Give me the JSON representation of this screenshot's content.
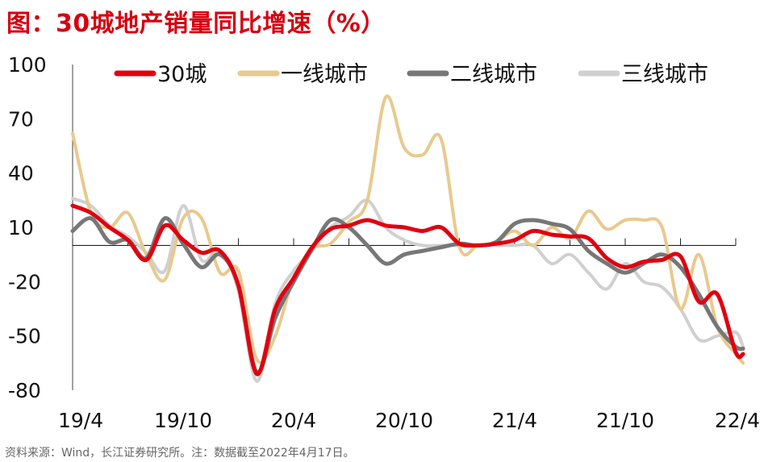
{
  "title": "图：30城地产销量同比增速（%）",
  "source": "资料来源：Wind，长江证券研究所。注：数据截至2022年4月17日。",
  "chart_data": {
    "type": "line",
    "title": "图：30城地产销量同比增速（%）",
    "xlabel": "",
    "ylabel": "",
    "ylim": [
      -80,
      100
    ],
    "yticks": [
      100,
      70,
      40,
      10,
      -20,
      -50,
      -80
    ],
    "xlim": [
      0,
      36
    ],
    "xticks": [
      {
        "x": 0,
        "label": "19/4"
      },
      {
        "x": 6,
        "label": "19/10"
      },
      {
        "x": 12,
        "label": "20/4"
      },
      {
        "x": 18,
        "label": "20/10"
      },
      {
        "x": 24,
        "label": "21/4"
      },
      {
        "x": 30,
        "label": "21/10"
      },
      {
        "x": 36,
        "label": "22/4"
      }
    ],
    "grid": false,
    "legend": "top",
    "series": [
      {
        "name": "30城",
        "color": "#e00010",
        "width": 5,
        "points": [
          [
            0,
            22
          ],
          [
            1,
            18
          ],
          [
            2,
            10
          ],
          [
            3,
            3
          ],
          [
            4,
            -8
          ],
          [
            5,
            11
          ],
          [
            6,
            3
          ],
          [
            7,
            -4
          ],
          [
            8,
            -3
          ],
          [
            9,
            -22
          ],
          [
            10,
            -71
          ],
          [
            11,
            -35
          ],
          [
            12,
            -18
          ],
          [
            13,
            -1
          ],
          [
            14,
            9
          ],
          [
            15,
            11
          ],
          [
            16,
            14
          ],
          [
            17,
            11
          ],
          [
            18,
            10
          ],
          [
            19,
            8
          ],
          [
            20,
            10
          ],
          [
            21,
            1
          ],
          [
            22,
            0
          ],
          [
            23,
            1
          ],
          [
            24,
            3
          ],
          [
            25,
            8
          ],
          [
            26,
            6
          ],
          [
            27,
            5
          ],
          [
            28,
            4
          ],
          [
            29,
            -7
          ],
          [
            30,
            -12
          ],
          [
            31,
            -9
          ],
          [
            32,
            -8
          ],
          [
            33,
            -6
          ],
          [
            34,
            -31
          ],
          [
            35,
            -27
          ],
          [
            36,
            -59
          ],
          [
            36.4,
            -60
          ]
        ]
      },
      {
        "name": "一线城市",
        "color": "#e8c98e",
        "width": 4,
        "points": [
          [
            0,
            62
          ],
          [
            1,
            18
          ],
          [
            2,
            10
          ],
          [
            3,
            18
          ],
          [
            4,
            -5
          ],
          [
            5,
            -19
          ],
          [
            6,
            15
          ],
          [
            7,
            15
          ],
          [
            8,
            -15
          ],
          [
            9,
            -14
          ],
          [
            10,
            -63
          ],
          [
            11,
            -50
          ],
          [
            12,
            -18
          ],
          [
            13,
            -2
          ],
          [
            14,
            1
          ],
          [
            15,
            13
          ],
          [
            16,
            25
          ],
          [
            17,
            82
          ],
          [
            18,
            54
          ],
          [
            19,
            50
          ],
          [
            20,
            59
          ],
          [
            21,
            -1
          ],
          [
            22,
            0
          ],
          [
            23,
            2
          ],
          [
            24,
            8
          ],
          [
            25,
            0
          ],
          [
            26,
            10
          ],
          [
            27,
            4
          ],
          [
            28,
            19
          ],
          [
            29,
            9
          ],
          [
            30,
            14
          ],
          [
            31,
            14
          ],
          [
            32,
            10
          ],
          [
            33,
            -35
          ],
          [
            34,
            -5
          ],
          [
            35,
            -45
          ],
          [
            36,
            -60
          ],
          [
            36.4,
            -65
          ]
        ]
      },
      {
        "name": "二线城市",
        "color": "#777777",
        "width": 5,
        "points": [
          [
            0,
            8
          ],
          [
            1,
            15
          ],
          [
            2,
            2
          ],
          [
            3,
            3
          ],
          [
            4,
            -7
          ],
          [
            5,
            15
          ],
          [
            6,
            1
          ],
          [
            7,
            -12
          ],
          [
            8,
            -5
          ],
          [
            9,
            -22
          ],
          [
            10,
            -70
          ],
          [
            11,
            -40
          ],
          [
            12,
            -20
          ],
          [
            13,
            -2
          ],
          [
            14,
            14
          ],
          [
            15,
            10
          ],
          [
            16,
            0
          ],
          [
            17,
            -10
          ],
          [
            18,
            -5
          ],
          [
            19,
            -3
          ],
          [
            20,
            -1
          ],
          [
            21,
            1
          ],
          [
            22,
            0
          ],
          [
            23,
            2
          ],
          [
            24,
            12
          ],
          [
            25,
            14
          ],
          [
            26,
            12
          ],
          [
            27,
            9
          ],
          [
            28,
            -3
          ],
          [
            29,
            -10
          ],
          [
            30,
            -15
          ],
          [
            31,
            -10
          ],
          [
            32,
            -5
          ],
          [
            33,
            -12
          ],
          [
            34,
            -27
          ],
          [
            35,
            -45
          ],
          [
            36,
            -56
          ],
          [
            36.4,
            -57
          ]
        ]
      },
      {
        "name": "三线城市",
        "color": "#d0d0d0",
        "width": 4,
        "points": [
          [
            0,
            26
          ],
          [
            1,
            22
          ],
          [
            2,
            11
          ],
          [
            3,
            5
          ],
          [
            4,
            -4
          ],
          [
            5,
            -14
          ],
          [
            6,
            22
          ],
          [
            7,
            -8
          ],
          [
            8,
            -3
          ],
          [
            9,
            -25
          ],
          [
            10,
            -75
          ],
          [
            11,
            -32
          ],
          [
            12,
            -14
          ],
          [
            13,
            -3
          ],
          [
            14,
            10
          ],
          [
            15,
            16
          ],
          [
            16,
            25
          ],
          [
            17,
            10
          ],
          [
            18,
            3
          ],
          [
            19,
            0
          ],
          [
            20,
            0
          ],
          [
            21,
            0
          ],
          [
            22,
            0
          ],
          [
            23,
            0
          ],
          [
            24,
            0
          ],
          [
            25,
            0
          ],
          [
            26,
            -10
          ],
          [
            27,
            -5
          ],
          [
            28,
            -15
          ],
          [
            29,
            -24
          ],
          [
            30,
            -10
          ],
          [
            31,
            -20
          ],
          [
            32,
            -23
          ],
          [
            33,
            -35
          ],
          [
            34,
            -52
          ],
          [
            35,
            -50
          ],
          [
            36,
            -48
          ],
          [
            36.4,
            -56
          ]
        ]
      }
    ]
  }
}
